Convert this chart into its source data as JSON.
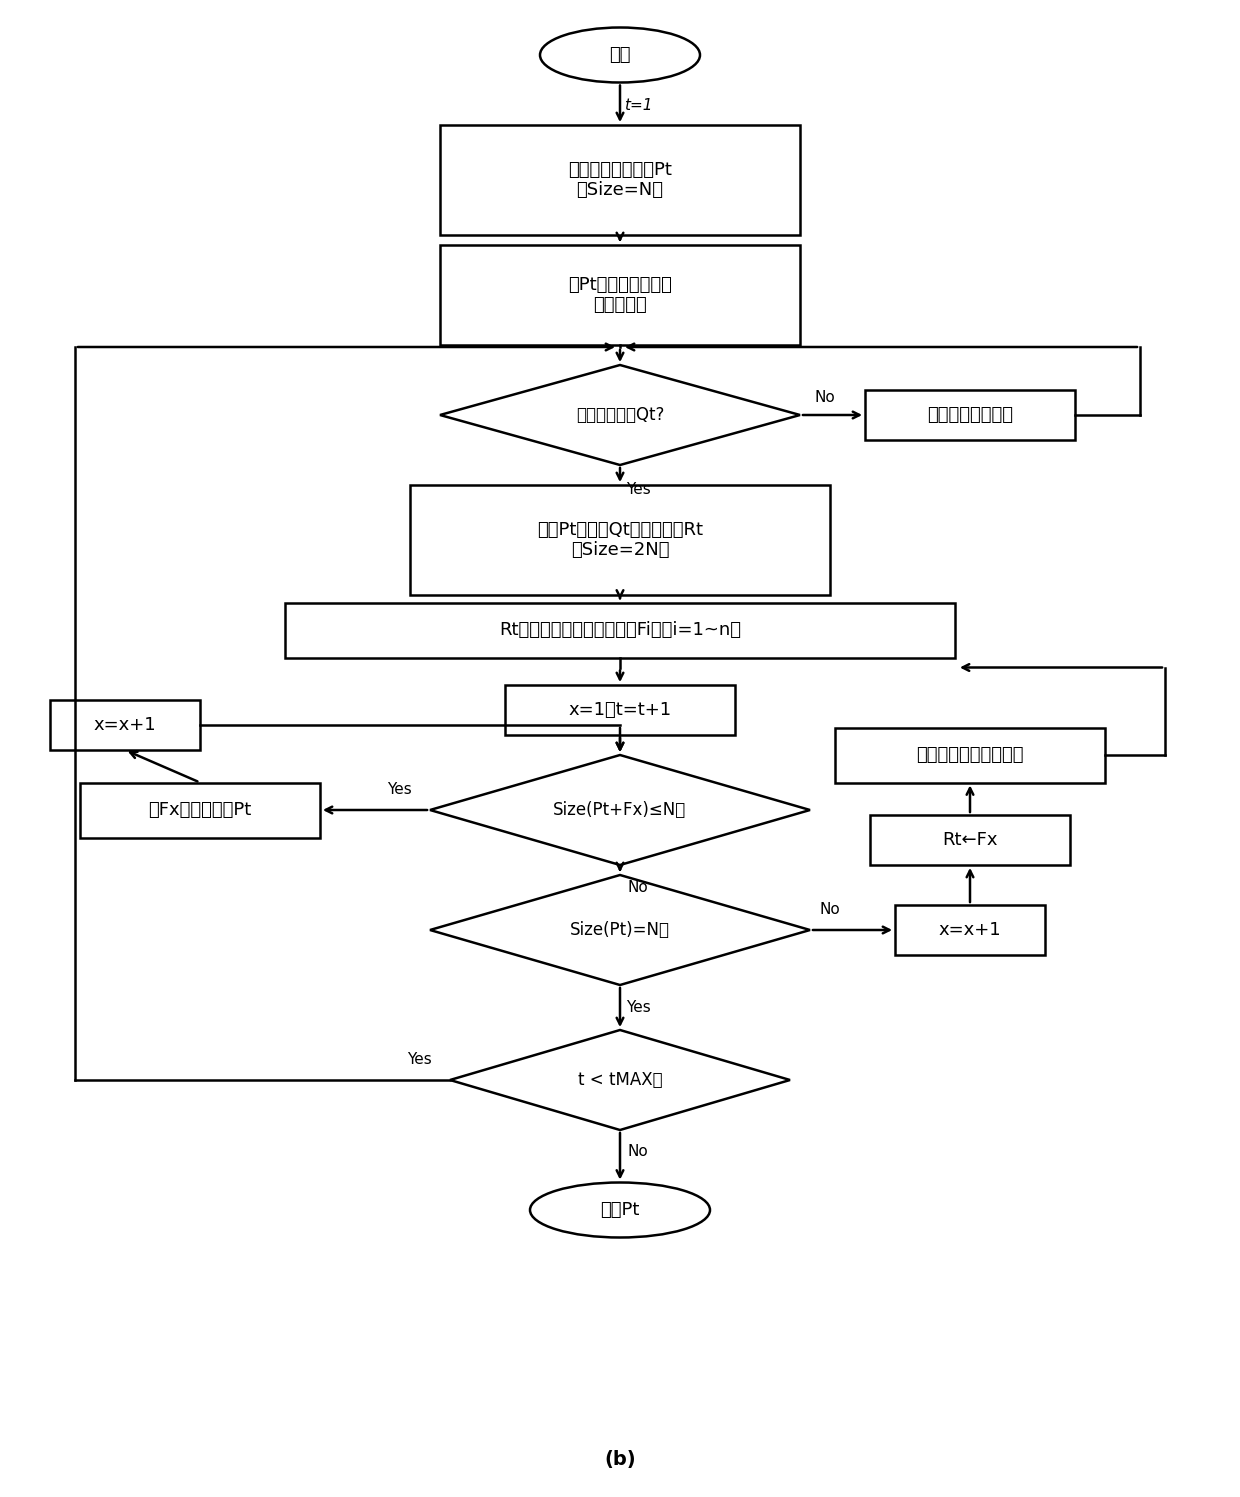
{
  "bg_color": "#ffffff",
  "title_label": "(b)",
  "nodes": {
    "start": {
      "label": "开始"
    },
    "box1": {
      "label": "随机生成父代种群Pt\n（Size=N）"
    },
    "box2": {
      "label": "对Pt按快速非支配排\n序方法排序"
    },
    "d1": {
      "label": "生成子代种群Qt?"
    },
    "boxR": {
      "label": "选择、交叉、变异"
    },
    "box3": {
      "label": "父代Pt与子代Qt个体合并为Rt\n（Size=2N）"
    },
    "box4": {
      "label": "Rt通过快速非支配排序分为Fi层（i=1~n）"
    },
    "box5": {
      "label": "x=1，t=t+1"
    },
    "d2": {
      "label": "Size(Pt+Fx)≤N？"
    },
    "boxL1": {
      "label": "将Fx层个体选入Pt"
    },
    "boxL2": {
      "label": "x=x+1"
    },
    "d3": {
      "label": "Size(Pt)=N？"
    },
    "boxRR1": {
      "label": "x=x+1"
    },
    "boxRR2": {
      "label": "Rt←Fx"
    },
    "boxRR3": {
      "label": "删除重要度最低的目标"
    },
    "d4": {
      "label": "t < tMAX？"
    },
    "end": {
      "label": "输出Pt"
    }
  }
}
